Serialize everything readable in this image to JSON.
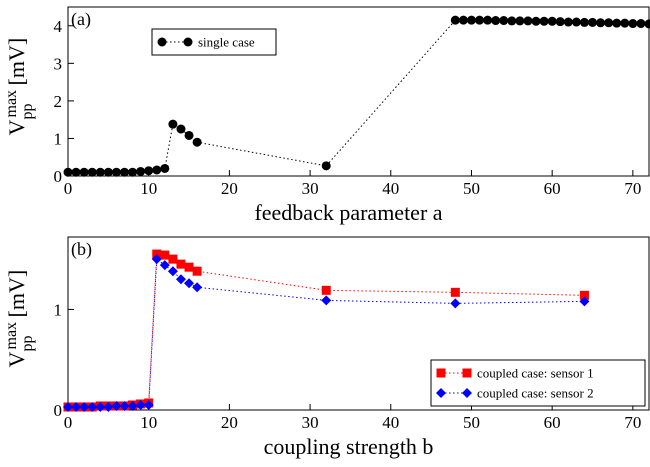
{
  "chart_data": [
    {
      "type": "line",
      "panel_label": "(a)",
      "xlabel": "feedback parameter a",
      "ylabel": {
        "base": "V",
        "sub": "pp",
        "sup": "max",
        "unit": "[mV]"
      },
      "xlim": [
        0,
        72
      ],
      "xticks": [
        0,
        10,
        20,
        30,
        40,
        50,
        60,
        70
      ],
      "ylim": [
        0,
        4.5
      ],
      "yticks": [
        0,
        1,
        2,
        3,
        4
      ],
      "legend": "upper left",
      "series": [
        {
          "name": "single case",
          "color": "#000000",
          "marker": "circle",
          "x": [
            0,
            1,
            2,
            3,
            4,
            5,
            6,
            7,
            8,
            9,
            10,
            11,
            12,
            13,
            14,
            15,
            16,
            32,
            48,
            49,
            50,
            51,
            52,
            53,
            54,
            55,
            56,
            57,
            58,
            59,
            60,
            61,
            62,
            63,
            64,
            65,
            66,
            67,
            68,
            69,
            70,
            71,
            72
          ],
          "values": [
            0.1,
            0.1,
            0.1,
            0.1,
            0.1,
            0.1,
            0.1,
            0.1,
            0.1,
            0.12,
            0.14,
            0.16,
            0.2,
            1.38,
            1.25,
            1.08,
            0.9,
            0.27,
            4.15,
            4.15,
            4.15,
            4.15,
            4.15,
            4.14,
            4.14,
            4.13,
            4.13,
            4.13,
            4.12,
            4.12,
            4.12,
            4.11,
            4.1,
            4.1,
            4.09,
            4.09,
            4.08,
            4.08,
            4.07,
            4.07,
            4.06,
            4.06,
            4.05
          ]
        }
      ]
    },
    {
      "type": "line",
      "panel_label": "(b)",
      "xlabel": "coupling strength b",
      "ylabel": {
        "base": "V",
        "sub": "pp",
        "sup": "max",
        "unit": "[mV]"
      },
      "xlim": [
        0,
        72
      ],
      "xticks": [
        0,
        10,
        20,
        30,
        40,
        50,
        60,
        70
      ],
      "ylim": [
        0,
        1.72
      ],
      "yticks": [
        0,
        1
      ],
      "legend": "lower right",
      "series": [
        {
          "name": "coupled case: sensor 1",
          "color": "#ff0000",
          "marker": "square",
          "x": [
            0,
            1,
            2,
            3,
            4,
            5,
            6,
            7,
            8,
            9,
            10,
            11,
            12,
            13,
            14,
            15,
            16,
            32,
            48,
            64
          ],
          "values": [
            0.03,
            0.03,
            0.03,
            0.03,
            0.04,
            0.04,
            0.04,
            0.04,
            0.05,
            0.06,
            0.07,
            1.55,
            1.54,
            1.5,
            1.45,
            1.42,
            1.38,
            1.19,
            1.17,
            1.14
          ]
        },
        {
          "name": "coupled case: sensor 2",
          "color": "#0000ff",
          "marker": "diamond",
          "x": [
            0,
            1,
            2,
            3,
            4,
            5,
            6,
            7,
            8,
            9,
            10,
            11,
            12,
            13,
            14,
            15,
            16,
            32,
            48,
            64
          ],
          "values": [
            0.03,
            0.03,
            0.03,
            0.03,
            0.03,
            0.03,
            0.04,
            0.04,
            0.04,
            0.05,
            0.05,
            1.5,
            1.44,
            1.38,
            1.3,
            1.26,
            1.22,
            1.09,
            1.06,
            1.08
          ]
        }
      ]
    }
  ]
}
